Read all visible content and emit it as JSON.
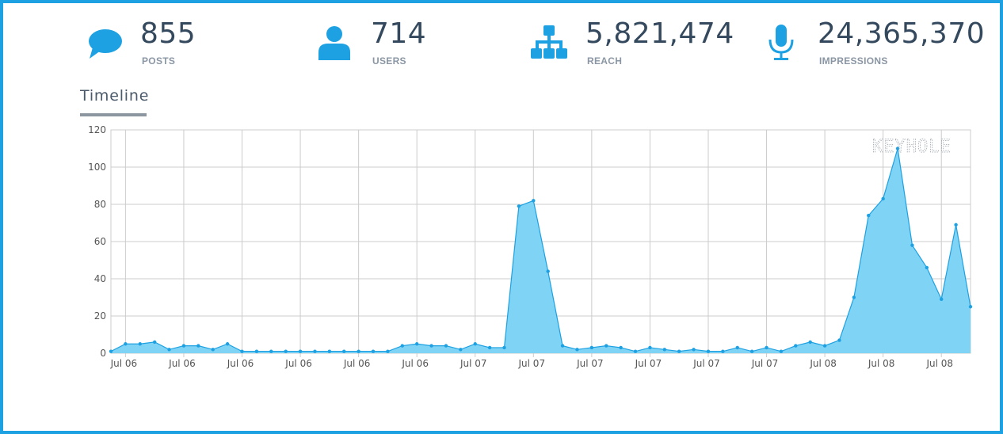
{
  "stats": [
    {
      "value": "855",
      "label": "POSTS",
      "icon": "chat-bubble-icon"
    },
    {
      "value": "714",
      "label": "USERS",
      "icon": "user-icon"
    },
    {
      "value": "5,821,474",
      "label": "REACH",
      "icon": "network-icon"
    },
    {
      "value": "24,365,370",
      "label": "IMPRESSIONS",
      "icon": "microphone-icon"
    }
  ],
  "colors": {
    "accent": "#1da1e2",
    "area": "#7fd3f5",
    "text": "#34495e",
    "muted": "#8a96a3"
  },
  "tab": {
    "label": "Timeline"
  },
  "watermark": {
    "text": "KEYHOLE"
  },
  "chart_data": {
    "type": "area",
    "title": "",
    "xlabel": "",
    "ylabel": "",
    "ylim": [
      0,
      120
    ],
    "yticks": [
      0,
      20,
      40,
      60,
      80,
      100,
      120
    ],
    "xtick_labels": [
      "Jul 06",
      "Jul 06",
      "Jul 06",
      "Jul 06",
      "Jul 06",
      "Jul 06",
      "Jul 07",
      "Jul 07",
      "Jul 07",
      "Jul 07",
      "Jul 07",
      "Jul 07",
      "Jul 08",
      "Jul 08",
      "Jul 08"
    ],
    "grid": true,
    "values": [
      1,
      5,
      5,
      6,
      2,
      4,
      4,
      2,
      5,
      1,
      1,
      1,
      1,
      1,
      1,
      1,
      1,
      1,
      1,
      1,
      4,
      5,
      4,
      4,
      2,
      5,
      3,
      3,
      79,
      82,
      44,
      4,
      2,
      3,
      4,
      3,
      1,
      3,
      2,
      1,
      2,
      1,
      1,
      3,
      1,
      3,
      1,
      4,
      6,
      4,
      7,
      30,
      74,
      83,
      110,
      58,
      46,
      29,
      69,
      25
    ]
  }
}
